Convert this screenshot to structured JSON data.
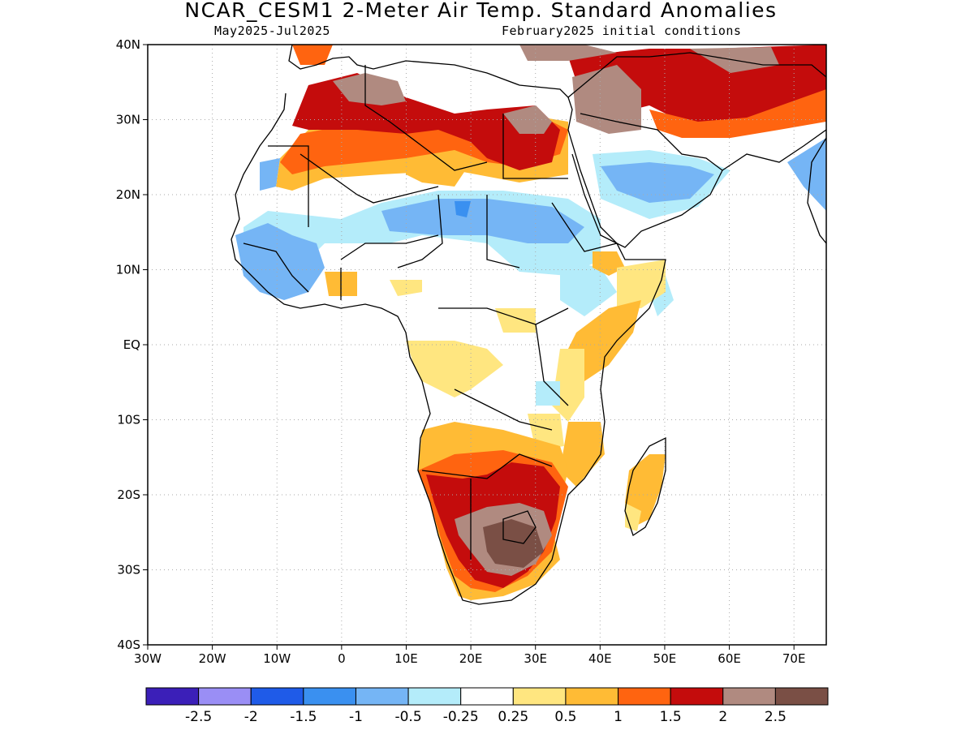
{
  "title": "NCAR_CESM1 2-Meter Air Temp. Standard Anomalies",
  "subtitle_left": "May2025-Jul2025",
  "subtitle_right": "February2025 initial conditions",
  "chart_data": {
    "type": "heatmap",
    "map_region": "Africa",
    "lon_range": [
      -30,
      75
    ],
    "lat_range": [
      -40,
      40
    ],
    "grid": true,
    "x_ticks": [
      "30W",
      "20W",
      "10W",
      "0",
      "10E",
      "20E",
      "30E",
      "40E",
      "50E",
      "60E",
      "70E"
    ],
    "y_ticks": [
      "40N",
      "30N",
      "20N",
      "10N",
      "EQ",
      "10S",
      "20S",
      "30S",
      "40S"
    ],
    "colorbar": {
      "colors": [
        "#3b1fb8",
        "#9a8ef5",
        "#1f5be8",
        "#3a90f0",
        "#75b5f5",
        "#b4ecfa",
        "#ffffff",
        "#ffe680",
        "#ffbb35",
        "#ff6410",
        "#c40c0c",
        "#b08a80",
        "#7a4f45"
      ],
      "labels": [
        "-2.5",
        "-2",
        "-1.5",
        "-1",
        "-0.5",
        "-0.25",
        "0.25",
        "0.5",
        "1",
        "1.5",
        "2",
        "2.5"
      ]
    }
  }
}
